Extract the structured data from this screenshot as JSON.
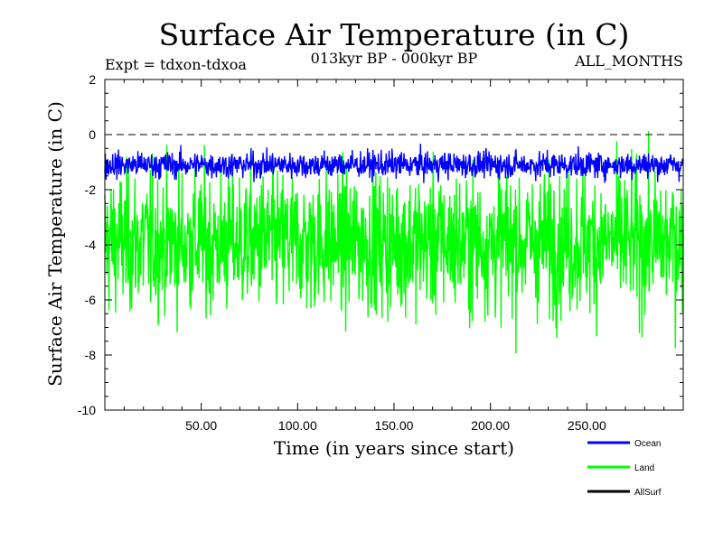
{
  "chart_data": {
    "type": "line",
    "title": "Surface Air Temperature (in C)",
    "subtitle_left": "Expt = tdxon-tdxoa",
    "subtitle_center": "013kyr BP - 000kyr BP",
    "subtitle_right": "ALL_MONTHS",
    "xlabel": "Time (in years since start)",
    "ylabel": "Surface Air Temperature (in C)",
    "xlim": [
      0,
      300
    ],
    "ylim": [
      -10,
      2
    ],
    "x_ticks": [
      50,
      100,
      150,
      200,
      250
    ],
    "x_tick_labels": [
      "50.00",
      "100.00",
      "150.00",
      "200.00",
      "250.00"
    ],
    "y_ticks": [
      2,
      0,
      -2,
      -4,
      -6,
      -8,
      -10
    ],
    "y_tick_labels": [
      "2",
      "0",
      "-2",
      "-4",
      "-6",
      "-8",
      "-10"
    ],
    "reference_line": {
      "y": 0,
      "style": "dashed"
    },
    "grid": false,
    "legend_placement": "bottom-right",
    "series": [
      {
        "name": "Ocean",
        "color": "#0000ff",
        "mean": -1.1,
        "band": [
          -1.9,
          -0.3
        ]
      },
      {
        "name": "Land",
        "color": "#00ff00",
        "mean": -3.9,
        "band": [
          -8.0,
          0.6
        ]
      },
      {
        "name": "AllSurf",
        "color": "#000000",
        "mean": null,
        "band": null
      }
    ]
  }
}
